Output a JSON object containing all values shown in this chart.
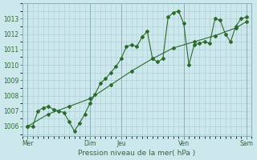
{
  "xlabel": "Pression niveau de la mer( hPa )",
  "bg_color": "#cce8ec",
  "grid_color": "#aaccd4",
  "line_color": "#2d6a2d",
  "ylim": [
    1005.4,
    1013.9
  ],
  "yticks": [
    1006,
    1007,
    1008,
    1009,
    1010,
    1011,
    1012,
    1013
  ],
  "xlim": [
    0,
    22
  ],
  "xtick_positions": [
    0.5,
    6.5,
    9.5,
    15.5,
    21.5
  ],
  "xtick_labels": [
    "Mer",
    "Dim",
    "Jeu",
    "Ven",
    "Sam"
  ],
  "vline_positions": [
    0.5,
    6.5,
    9.5,
    15.5,
    21.5
  ],
  "series1_x": [
    0.5,
    1.0,
    1.5,
    2.0,
    2.5,
    3.0,
    3.5,
    4.0,
    4.5,
    5.0,
    5.5,
    6.0,
    6.5,
    7.0,
    7.5,
    8.0,
    8.5,
    9.0,
    9.5,
    10.0,
    10.5,
    11.0,
    11.5,
    12.0,
    12.5,
    13.0,
    13.5,
    14.0,
    14.5,
    15.0,
    15.5,
    16.0,
    16.5,
    17.0,
    17.5,
    18.0,
    18.5,
    19.0,
    19.5,
    20.0,
    20.5,
    21.0,
    21.5
  ],
  "series1_y": [
    1006.0,
    1006.0,
    1007.0,
    1007.2,
    1007.3,
    1007.1,
    1007.0,
    1006.9,
    1006.3,
    1005.7,
    1006.2,
    1006.8,
    1007.5,
    1008.1,
    1008.8,
    1009.1,
    1009.5,
    1009.9,
    1010.4,
    1011.2,
    1011.3,
    1011.2,
    1011.8,
    1012.2,
    1010.4,
    1010.2,
    1010.4,
    1013.1,
    1013.4,
    1013.5,
    1012.7,
    1010.0,
    1011.3,
    1011.4,
    1011.5,
    1011.4,
    1013.0,
    1012.9,
    1012.0,
    1011.5,
    1012.5,
    1013.0,
    1013.1
  ],
  "series2_x": [
    0.5,
    2.5,
    4.5,
    6.5,
    8.5,
    10.5,
    12.5,
    14.5,
    16.5,
    18.5,
    20.5,
    21.5
  ],
  "series2_y": [
    1006.0,
    1006.8,
    1007.3,
    1007.8,
    1008.7,
    1009.6,
    1010.4,
    1011.1,
    1011.5,
    1011.9,
    1012.4,
    1012.8
  ]
}
